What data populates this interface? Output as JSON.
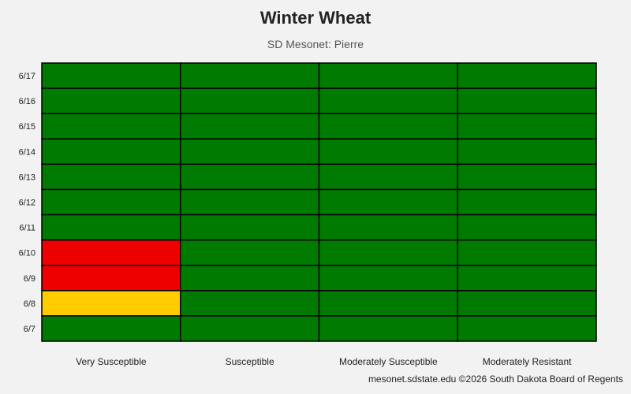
{
  "chart_data": {
    "type": "heatmap",
    "title": "Winter Wheat",
    "subtitle": "SD Mesonet: Pierre",
    "columns": [
      "Very Susceptible",
      "Susceptible",
      "Moderately Susceptible",
      "Moderately Resistant"
    ],
    "rows": [
      "6/17",
      "6/16",
      "6/15",
      "6/14",
      "6/13",
      "6/12",
      "6/11",
      "6/10",
      "6/9",
      "6/8",
      "6/7"
    ],
    "risk_levels": {
      "low": "#007a00",
      "moderate": "#ffcc00",
      "high": "#ee0000"
    },
    "cells": [
      [
        "low",
        "low",
        "low",
        "low"
      ],
      [
        "low",
        "low",
        "low",
        "low"
      ],
      [
        "low",
        "low",
        "low",
        "low"
      ],
      [
        "low",
        "low",
        "low",
        "low"
      ],
      [
        "low",
        "low",
        "low",
        "low"
      ],
      [
        "low",
        "low",
        "low",
        "low"
      ],
      [
        "low",
        "low",
        "low",
        "low"
      ],
      [
        "high",
        "low",
        "low",
        "low"
      ],
      [
        "high",
        "low",
        "low",
        "low"
      ],
      [
        "moderate",
        "low",
        "low",
        "low"
      ],
      [
        "low",
        "low",
        "low",
        "low"
      ]
    ]
  },
  "footer": "mesonet.sdstate.edu ©2026 South Dakota Board of Regents"
}
